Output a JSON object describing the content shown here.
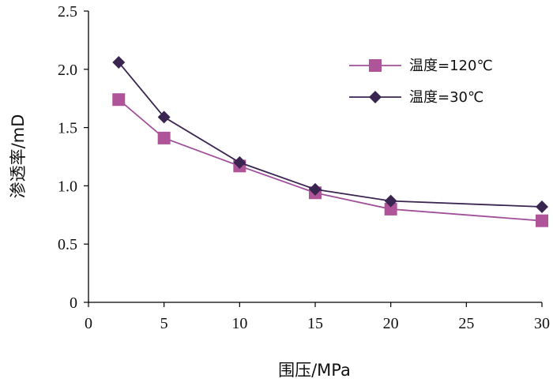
{
  "chart_data": {
    "type": "line",
    "title": "",
    "xlabel": "围压/MPa",
    "ylabel": "渗透率/mD",
    "xlim": [
      0,
      30
    ],
    "ylim": [
      0,
      2.5
    ],
    "xticks": [
      "0",
      "5",
      "10",
      "15",
      "20",
      "25",
      "30"
    ],
    "yticks": [
      "0",
      "0.5",
      "1.0",
      "1.5",
      "2.0",
      "2.5"
    ],
    "grid": false,
    "legend_position": "top-right",
    "series": [
      {
        "name": "温度=120℃",
        "marker": "square",
        "color": "#B0549A",
        "line_color": "#A0509A",
        "x": [
          2,
          5,
          10,
          15,
          20,
          30
        ],
        "y": [
          1.74,
          1.41,
          1.17,
          0.94,
          0.8,
          0.7
        ]
      },
      {
        "name": "温度=30℃",
        "marker": "diamond",
        "color": "#3A2550",
        "line_color": "#3A2550",
        "x": [
          2,
          5,
          10,
          15,
          20,
          30
        ],
        "y": [
          2.06,
          1.59,
          1.2,
          0.97,
          0.87,
          0.82
        ]
      }
    ]
  }
}
